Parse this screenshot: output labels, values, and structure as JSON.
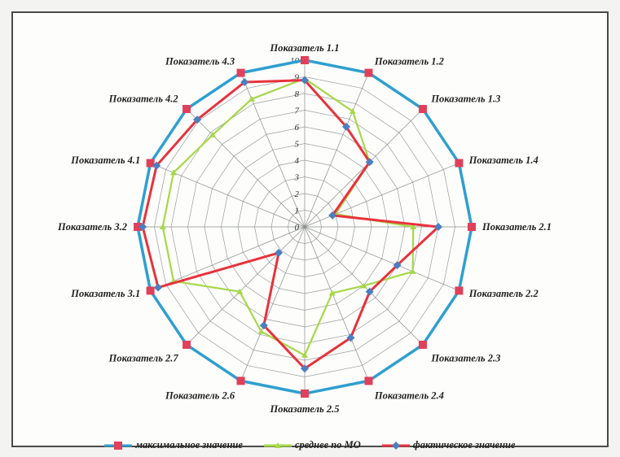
{
  "chart_data": {
    "type": "radar",
    "categories": [
      "Показатель 1.1",
      "Показатель 1.2",
      "Показатель 1.3",
      "Показатель 1.4",
      "Показатель 2.1",
      "Показатель 2.2",
      "Показатель 2.3",
      "Показатель 2.4",
      "Показатель 2.5",
      "Показатель 2.6",
      "Показатель 2.7",
      "Показатель 3.1",
      "Показатель 3.2",
      "Показатель 4.1",
      "Показатель 4.2",
      "Показатель 4.3"
    ],
    "rlim": [
      0,
      10
    ],
    "ticks": [
      0,
      1,
      2,
      3,
      4,
      5,
      6,
      7,
      8,
      9,
      10
    ],
    "grid": true,
    "legend_position": "bottom",
    "series": [
      {
        "name": "максимальное значение",
        "color": "#2e9fd0",
        "marker_color": "#e0405a",
        "values": [
          10,
          10,
          10,
          10,
          10,
          10,
          10,
          10,
          10,
          10,
          10,
          10,
          10,
          10,
          10,
          10
        ]
      },
      {
        "name": "среднее по МО",
        "color": "#a6d84a",
        "marker_color": "#a6d84a",
        "values": [
          8.9,
          7.5,
          5.5,
          2.0,
          6.5,
          7.0,
          5.0,
          4.3,
          7.7,
          6.8,
          5.5,
          8.5,
          8.5,
          8.5,
          7.8,
          8.3
        ]
      },
      {
        "name": "фактическое значение",
        "color": "#e8323c",
        "marker_color": "#4a7fc0",
        "values": [
          8.8,
          6.5,
          5.5,
          1.8,
          8.0,
          6.0,
          5.5,
          7.2,
          8.5,
          6.4,
          2.2,
          9.5,
          9.7,
          9.6,
          9.1,
          9.4
        ]
      }
    ]
  }
}
